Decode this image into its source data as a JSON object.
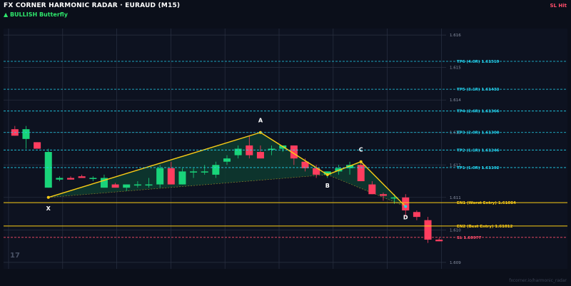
{
  "header": {
    "title": "FX CORNER HARMONIC RADAR  ·  EURAUD (M15)",
    "pattern_label": "▲ BULLISH  Butterfly",
    "status": "SL Hit"
  },
  "chart_data": {
    "type": "candlestick",
    "ylim": [
      1.6088,
      1.6162
    ],
    "y_ticks": [
      "1.616",
      "1.615",
      "1.614",
      "1.613",
      "1.612",
      "1.611",
      "1.610",
      "1.609"
    ],
    "levels": [
      {
        "label": "TP6 (4.0R)  1.61519",
        "value": 1.61519,
        "color": "#22d3ee",
        "style": "dash"
      },
      {
        "label": "TP5 (3.1R)  1.61433",
        "value": 1.61433,
        "color": "#22d3ee",
        "style": "dash"
      },
      {
        "label": "TP4 (2.6R)  1.61366",
        "value": 1.61366,
        "color": "#22d3ee",
        "style": "dash"
      },
      {
        "label": "TP3 (2.0R)  1.61300",
        "value": 1.613,
        "color": "#22d3ee",
        "style": "dash"
      },
      {
        "label": "TP2 (1.1R)  1.61246",
        "value": 1.61246,
        "color": "#22d3ee",
        "style": "dash"
      },
      {
        "label": "TP1 (1.0R)  1.61192",
        "value": 1.61192,
        "color": "#22d3ee",
        "style": "dash"
      },
      {
        "label": "EN1 (Worst Entry)  1.61084",
        "value": 1.61084,
        "color": "#facc15",
        "style": "solid"
      },
      {
        "label": "EN2 (Best Entry)  1.61012",
        "value": 1.61012,
        "color": "#facc15",
        "style": "solid"
      },
      {
        "label": "SL  1.60977",
        "value": 1.60977,
        "color": "#ff4d6a",
        "style": "dash"
      }
    ],
    "pivots": [
      {
        "label": "X",
        "index": 3,
        "value": 1.611
      },
      {
        "label": "A",
        "index": 22,
        "value": 1.613
      },
      {
        "label": "B",
        "index": 28,
        "value": 1.6117
      },
      {
        "label": "C",
        "index": 31,
        "value": 1.6121
      },
      {
        "label": "D",
        "index": 35,
        "value": 1.61072
      }
    ],
    "candles": [
      {
        "o": 1.6131,
        "h": 1.6132,
        "l": 1.6129,
        "c": 1.6129
      },
      {
        "o": 1.6128,
        "h": 1.6132,
        "l": 1.6125,
        "c": 1.6131
      },
      {
        "o": 1.6127,
        "h": 1.6127,
        "l": 1.6125,
        "c": 1.6125
      },
      {
        "o": 1.6113,
        "h": 1.6125,
        "l": 1.6113,
        "c": 1.6124
      },
      {
        "o": 1.61155,
        "h": 1.61165,
        "l": 1.6115,
        "c": 1.6116
      },
      {
        "o": 1.6116,
        "h": 1.61165,
        "l": 1.61155,
        "c": 1.61155
      },
      {
        "o": 1.61165,
        "h": 1.6117,
        "l": 1.6116,
        "c": 1.6116
      },
      {
        "o": 1.6116,
        "h": 1.61165,
        "l": 1.6115,
        "c": 1.6116
      },
      {
        "o": 1.6113,
        "h": 1.6117,
        "l": 1.6113,
        "c": 1.6116
      },
      {
        "o": 1.6114,
        "h": 1.61145,
        "l": 1.6113,
        "c": 1.6113
      },
      {
        "o": 1.6113,
        "h": 1.6114,
        "l": 1.6112,
        "c": 1.6114
      },
      {
        "o": 1.61138,
        "h": 1.6115,
        "l": 1.6113,
        "c": 1.6114
      },
      {
        "o": 1.6114,
        "h": 1.6116,
        "l": 1.6113,
        "c": 1.6114
      },
      {
        "o": 1.6114,
        "h": 1.612,
        "l": 1.6113,
        "c": 1.6119
      },
      {
        "o": 1.6119,
        "h": 1.6121,
        "l": 1.6114,
        "c": 1.6114
      },
      {
        "o": 1.6114,
        "h": 1.6119,
        "l": 1.6114,
        "c": 1.6118
      },
      {
        "o": 1.6118,
        "h": 1.6119,
        "l": 1.6116,
        "c": 1.6118
      },
      {
        "o": 1.61178,
        "h": 1.612,
        "l": 1.6117,
        "c": 1.6118
      },
      {
        "o": 1.6117,
        "h": 1.6121,
        "l": 1.6116,
        "c": 1.612
      },
      {
        "o": 1.6121,
        "h": 1.6123,
        "l": 1.612,
        "c": 1.6122
      },
      {
        "o": 1.6123,
        "h": 1.6126,
        "l": 1.6122,
        "c": 1.6125
      },
      {
        "o": 1.6126,
        "h": 1.6129,
        "l": 1.6122,
        "c": 1.6123
      },
      {
        "o": 1.6124,
        "h": 1.6126,
        "l": 1.6122,
        "c": 1.6122
      },
      {
        "o": 1.6125,
        "h": 1.6126,
        "l": 1.6123,
        "c": 1.6125
      },
      {
        "o": 1.6125,
        "h": 1.6126,
        "l": 1.6124,
        "c": 1.6126
      },
      {
        "o": 1.6126,
        "h": 1.6126,
        "l": 1.612,
        "c": 1.6122
      },
      {
        "o": 1.6121,
        "h": 1.6122,
        "l": 1.6118,
        "c": 1.6119
      },
      {
        "o": 1.6119,
        "h": 1.612,
        "l": 1.6116,
        "c": 1.6117
      },
      {
        "o": 1.6117,
        "h": 1.6118,
        "l": 1.6116,
        "c": 1.6118
      },
      {
        "o": 1.6118,
        "h": 1.612,
        "l": 1.6117,
        "c": 1.6119
      },
      {
        "o": 1.6119,
        "h": 1.6121,
        "l": 1.6117,
        "c": 1.612
      },
      {
        "o": 1.612,
        "h": 1.6121,
        "l": 1.6115,
        "c": 1.6115
      },
      {
        "o": 1.6114,
        "h": 1.6115,
        "l": 1.6111,
        "c": 1.6111
      },
      {
        "o": 1.6111,
        "h": 1.61115,
        "l": 1.6109,
        "c": 1.61105
      },
      {
        "o": 1.611,
        "h": 1.6111,
        "l": 1.6108,
        "c": 1.611
      },
      {
        "o": 1.611,
        "h": 1.6111,
        "l": 1.6104,
        "c": 1.6106
      },
      {
        "o": 1.61055,
        "h": 1.6106,
        "l": 1.6103,
        "c": 1.6104
      },
      {
        "o": 1.6103,
        "h": 1.6104,
        "l": 1.6096,
        "c": 1.6097
      },
      {
        "o": 1.6097,
        "h": 1.60975,
        "l": 1.60965,
        "c": 1.60965
      }
    ]
  },
  "watermark": {
    "corner_number": "17",
    "footer": "fxcorner.io/harmonic_radar"
  }
}
